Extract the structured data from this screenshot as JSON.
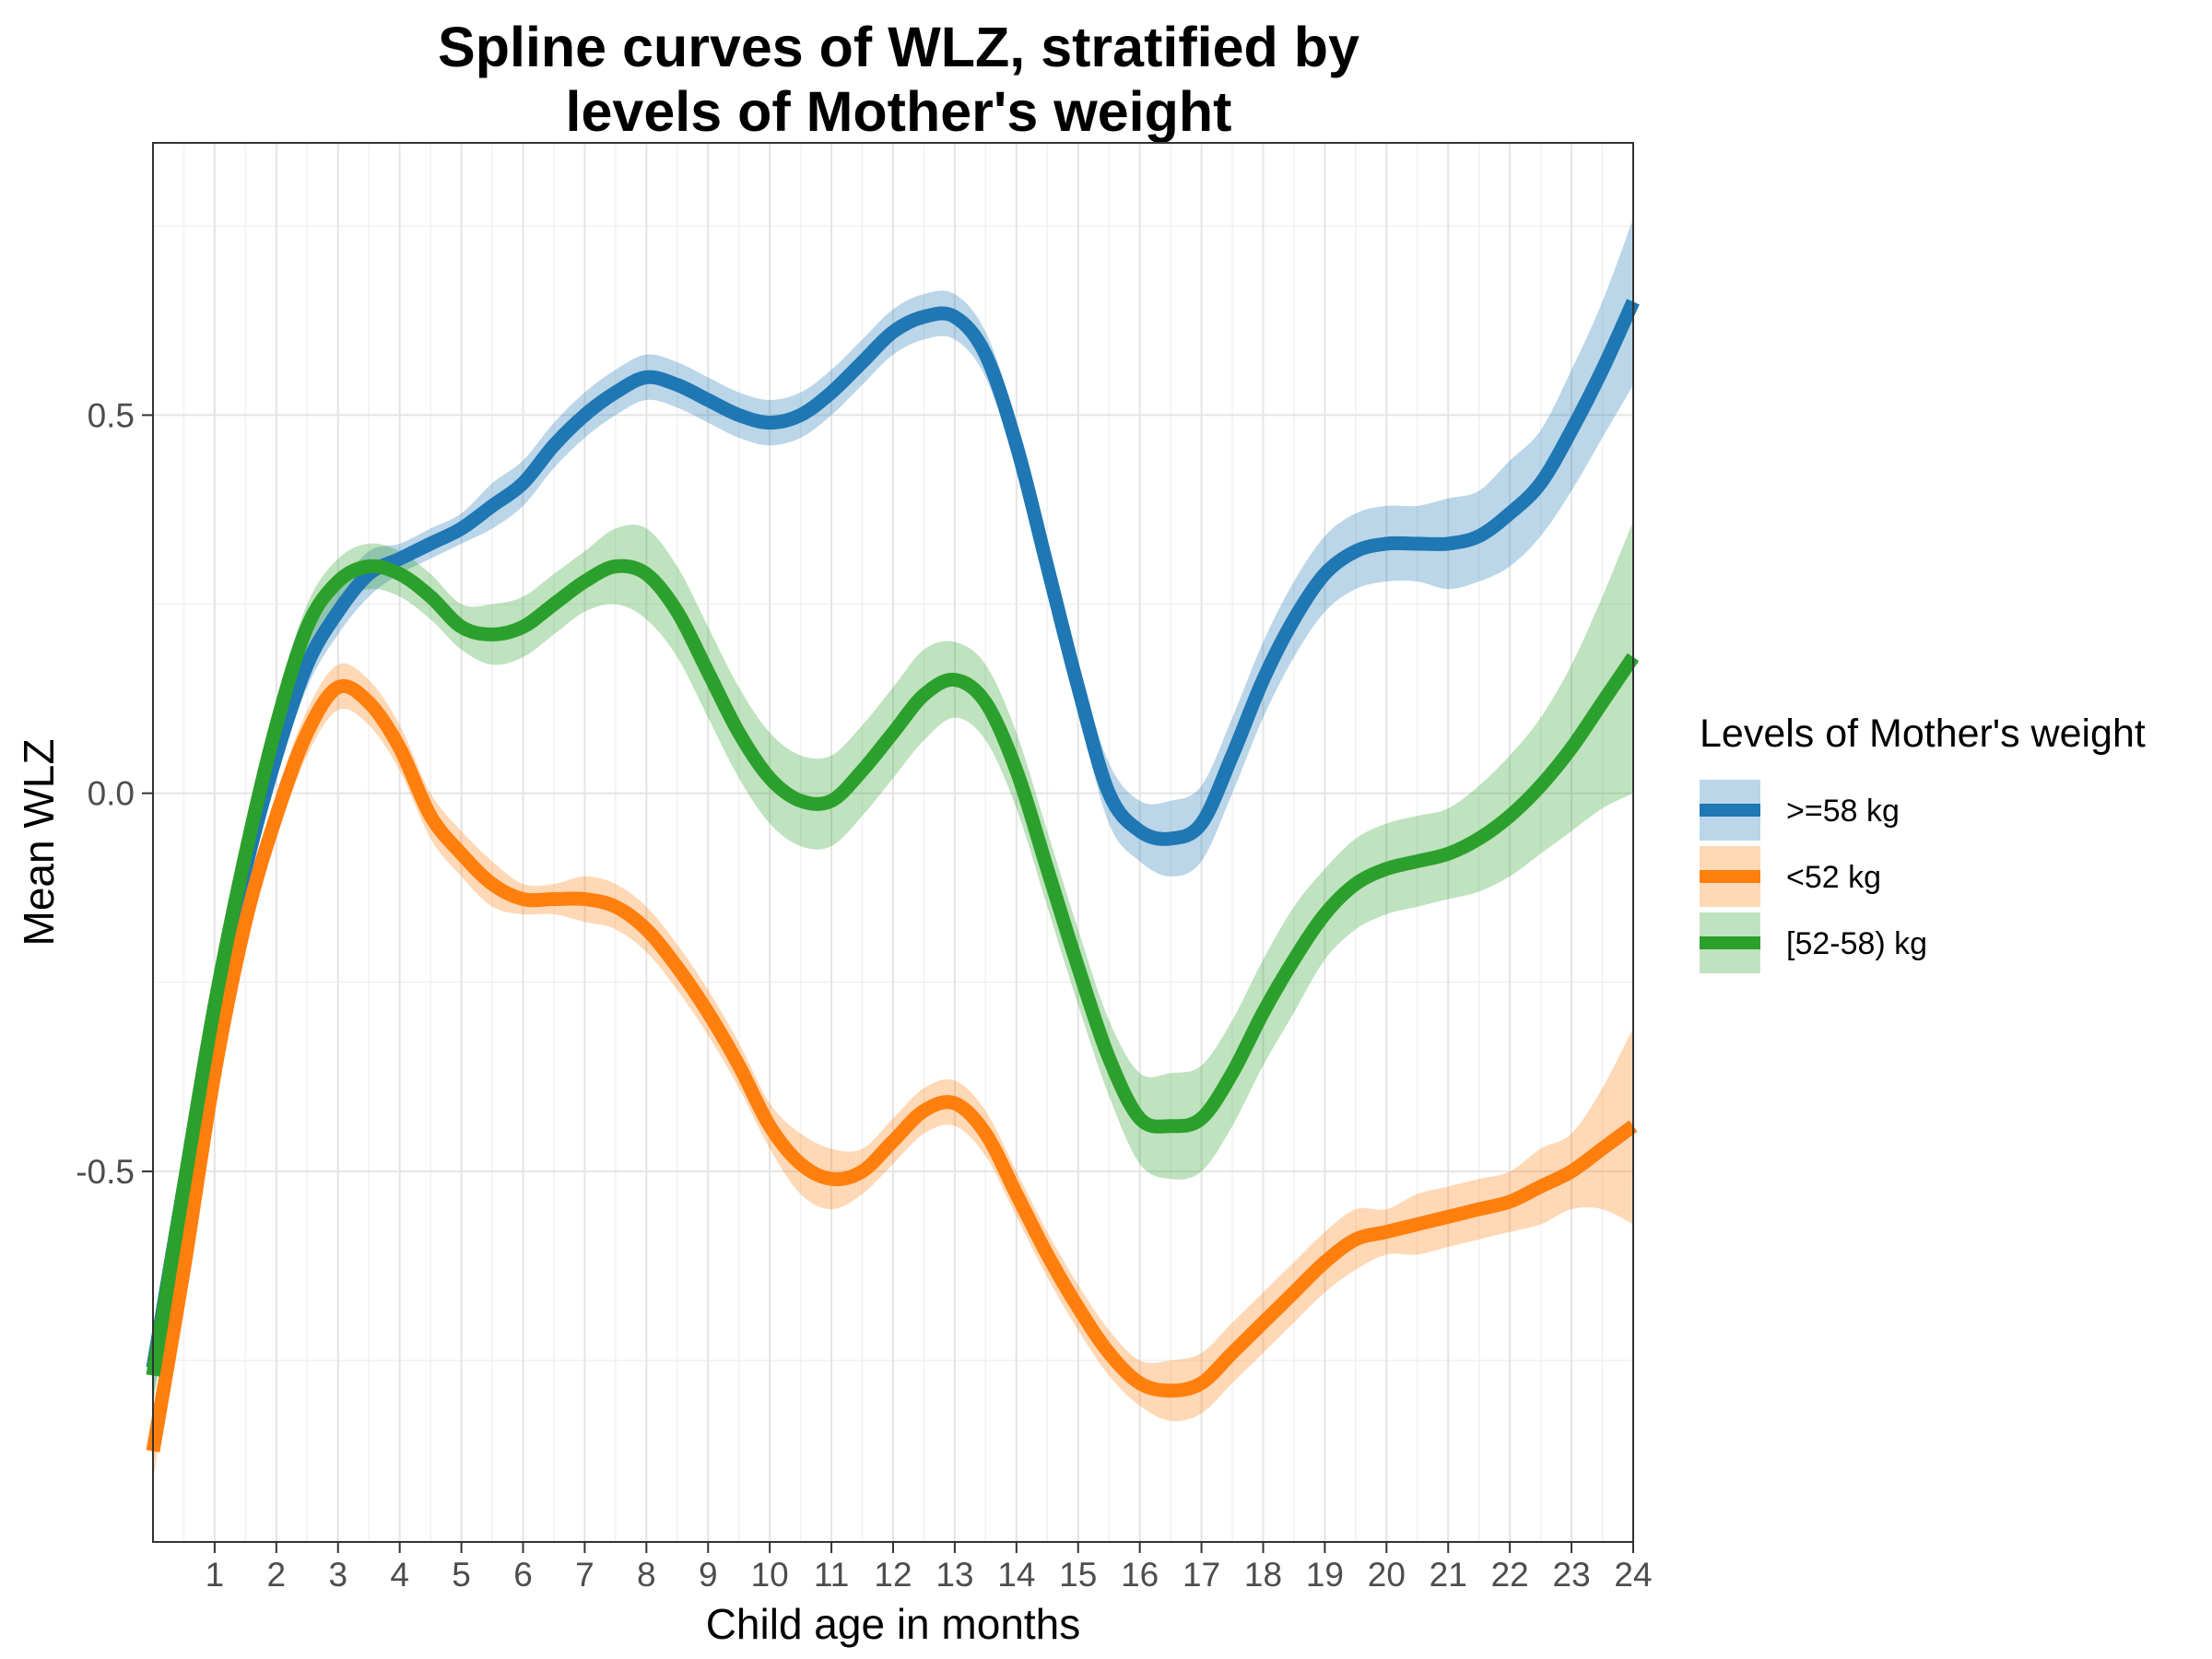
{
  "chart_data": {
    "type": "line",
    "title_lines": [
      "Spline curves of WLZ, stratified by",
      "levels of Mother's weight"
    ],
    "xlabel": "Child age in months",
    "ylabel": "Mean WLZ",
    "xlim": [
      0,
      24
    ],
    "ylim": [
      -0.99,
      0.86
    ],
    "x_ticks": [
      1,
      2,
      3,
      4,
      5,
      6,
      7,
      8,
      9,
      10,
      11,
      12,
      13,
      14,
      15,
      16,
      17,
      18,
      19,
      20,
      21,
      22,
      23,
      24
    ],
    "x_tick_labels": [
      "1",
      "2",
      "3",
      "4",
      "5",
      "6",
      "7",
      "8",
      "9",
      "10",
      "11",
      "12",
      "13",
      "14",
      "15",
      "16",
      "17",
      "18",
      "19",
      "20",
      "21",
      "22",
      "23",
      "24"
    ],
    "y_ticks": [
      -0.5,
      0.0,
      0.5
    ],
    "y_tick_labels": [
      "-0.5",
      "0.0",
      "0.5"
    ],
    "grid": true,
    "legend": {
      "title": "Levels of Mother's weight",
      "position": "right"
    },
    "x": [
      0,
      0.5,
      1,
      1.5,
      2,
      2.5,
      3,
      3.5,
      4,
      4.5,
      5,
      5.5,
      6,
      6.5,
      7,
      7.5,
      8,
      8.5,
      9,
      9.5,
      10,
      10.5,
      11,
      11.5,
      12,
      12.5,
      13,
      13.5,
      14,
      14.5,
      15,
      15.5,
      16,
      16.5,
      17,
      17.5,
      18,
      18.5,
      19,
      19.5,
      20,
      20.5,
      21,
      21.5,
      22,
      22.5,
      23,
      23.5,
      24
    ],
    "series": [
      {
        "name": ">=58 kg",
        "color": "#1f77b4",
        "band_color": "#bdd7ee",
        "values": [
          -0.76,
          -0.52,
          -0.29,
          -0.1,
          0.05,
          0.17,
          0.24,
          0.29,
          0.31,
          0.33,
          0.35,
          0.38,
          0.41,
          0.46,
          0.5,
          0.53,
          0.55,
          0.54,
          0.52,
          0.5,
          0.49,
          0.5,
          0.53,
          0.57,
          0.61,
          0.63,
          0.63,
          0.58,
          0.46,
          0.3,
          0.14,
          0.0,
          -0.05,
          -0.06,
          -0.04,
          0.05,
          0.15,
          0.23,
          0.29,
          0.32,
          0.33,
          0.33,
          0.33,
          0.34,
          0.37,
          0.41,
          0.48,
          0.56,
          0.65
        ],
        "lower": [
          -0.8,
          -0.55,
          -0.32,
          -0.13,
          0.02,
          0.14,
          0.21,
          0.26,
          0.29,
          0.31,
          0.33,
          0.35,
          0.38,
          0.43,
          0.47,
          0.5,
          0.52,
          0.51,
          0.49,
          0.47,
          0.46,
          0.47,
          0.5,
          0.54,
          0.58,
          0.6,
          0.6,
          0.55,
          0.43,
          0.27,
          0.11,
          -0.04,
          -0.09,
          -0.11,
          -0.09,
          0.0,
          0.1,
          0.18,
          0.24,
          0.27,
          0.28,
          0.28,
          0.27,
          0.28,
          0.3,
          0.34,
          0.4,
          0.47,
          0.54
        ],
        "upper": [
          -0.72,
          -0.49,
          -0.26,
          -0.07,
          0.08,
          0.2,
          0.27,
          0.32,
          0.33,
          0.35,
          0.37,
          0.41,
          0.44,
          0.49,
          0.53,
          0.56,
          0.58,
          0.57,
          0.55,
          0.53,
          0.52,
          0.53,
          0.56,
          0.6,
          0.64,
          0.66,
          0.66,
          0.61,
          0.49,
          0.33,
          0.17,
          0.04,
          -0.01,
          -0.01,
          0.01,
          0.1,
          0.2,
          0.28,
          0.34,
          0.37,
          0.38,
          0.38,
          0.39,
          0.4,
          0.44,
          0.48,
          0.56,
          0.65,
          0.76
        ]
      },
      {
        "name": "<52 kg",
        "color": "#ff7f0e",
        "band_color": "#fdd0a2",
        "values": [
          -0.87,
          -0.63,
          -0.37,
          -0.17,
          -0.03,
          0.08,
          0.14,
          0.12,
          0.06,
          -0.03,
          -0.08,
          -0.12,
          -0.14,
          -0.14,
          -0.14,
          -0.15,
          -0.18,
          -0.23,
          -0.29,
          -0.36,
          -0.44,
          -0.49,
          -0.51,
          -0.5,
          -0.46,
          -0.42,
          -0.41,
          -0.45,
          -0.53,
          -0.61,
          -0.68,
          -0.74,
          -0.78,
          -0.79,
          -0.78,
          -0.74,
          -0.7,
          -0.66,
          -0.62,
          -0.59,
          -0.58,
          -0.57,
          -0.56,
          -0.55,
          -0.54,
          -0.52,
          -0.5,
          -0.47,
          -0.44
        ],
        "lower": [
          -0.91,
          -0.66,
          -0.4,
          -0.2,
          -0.06,
          0.05,
          0.11,
          0.09,
          0.03,
          -0.06,
          -0.11,
          -0.15,
          -0.16,
          -0.16,
          -0.17,
          -0.18,
          -0.21,
          -0.26,
          -0.32,
          -0.39,
          -0.47,
          -0.53,
          -0.55,
          -0.53,
          -0.49,
          -0.45,
          -0.44,
          -0.48,
          -0.56,
          -0.64,
          -0.71,
          -0.77,
          -0.81,
          -0.83,
          -0.82,
          -0.78,
          -0.74,
          -0.7,
          -0.66,
          -0.63,
          -0.61,
          -0.61,
          -0.6,
          -0.59,
          -0.58,
          -0.57,
          -0.55,
          -0.55,
          -0.57
        ],
        "upper": [
          -0.83,
          -0.6,
          -0.34,
          -0.14,
          0.0,
          0.11,
          0.17,
          0.15,
          0.09,
          0.0,
          -0.05,
          -0.09,
          -0.12,
          -0.12,
          -0.11,
          -0.12,
          -0.15,
          -0.2,
          -0.26,
          -0.33,
          -0.41,
          -0.45,
          -0.47,
          -0.47,
          -0.43,
          -0.39,
          -0.38,
          -0.42,
          -0.5,
          -0.58,
          -0.65,
          -0.71,
          -0.75,
          -0.75,
          -0.74,
          -0.7,
          -0.66,
          -0.62,
          -0.58,
          -0.55,
          -0.55,
          -0.53,
          -0.52,
          -0.51,
          -0.5,
          -0.47,
          -0.45,
          -0.39,
          -0.31
        ]
      },
      {
        "name": "[52-58) kg",
        "color": "#2ca02c",
        "band_color": "#b8e0b4",
        "values": [
          -0.77,
          -0.52,
          -0.28,
          -0.08,
          0.09,
          0.22,
          0.28,
          0.3,
          0.29,
          0.26,
          0.22,
          0.21,
          0.22,
          0.25,
          0.28,
          0.3,
          0.29,
          0.24,
          0.16,
          0.08,
          0.02,
          -0.01,
          -0.01,
          0.03,
          0.08,
          0.13,
          0.15,
          0.12,
          0.03,
          -0.1,
          -0.23,
          -0.35,
          -0.43,
          -0.44,
          -0.43,
          -0.37,
          -0.29,
          -0.22,
          -0.16,
          -0.12,
          -0.1,
          -0.09,
          -0.08,
          -0.06,
          -0.03,
          0.01,
          0.06,
          0.12,
          0.18
        ],
        "lower": [
          -0.81,
          -0.56,
          -0.31,
          -0.11,
          0.06,
          0.19,
          0.25,
          0.27,
          0.26,
          0.23,
          0.19,
          0.17,
          0.18,
          0.21,
          0.24,
          0.25,
          0.23,
          0.18,
          0.1,
          0.02,
          -0.04,
          -0.07,
          -0.07,
          -0.03,
          0.02,
          0.07,
          0.1,
          0.07,
          -0.02,
          -0.15,
          -0.28,
          -0.4,
          -0.49,
          -0.51,
          -0.5,
          -0.44,
          -0.36,
          -0.29,
          -0.22,
          -0.18,
          -0.16,
          -0.15,
          -0.14,
          -0.13,
          -0.11,
          -0.08,
          -0.05,
          -0.02,
          0.0
        ],
        "upper": [
          -0.73,
          -0.48,
          -0.25,
          -0.05,
          0.12,
          0.25,
          0.31,
          0.33,
          0.32,
          0.29,
          0.25,
          0.25,
          0.26,
          0.29,
          0.32,
          0.35,
          0.35,
          0.3,
          0.22,
          0.14,
          0.08,
          0.05,
          0.05,
          0.09,
          0.14,
          0.19,
          0.2,
          0.17,
          0.08,
          -0.05,
          -0.18,
          -0.3,
          -0.37,
          -0.37,
          -0.36,
          -0.3,
          -0.22,
          -0.15,
          -0.1,
          -0.06,
          -0.04,
          -0.03,
          -0.02,
          0.01,
          0.05,
          0.1,
          0.17,
          0.26,
          0.36
        ]
      }
    ]
  }
}
